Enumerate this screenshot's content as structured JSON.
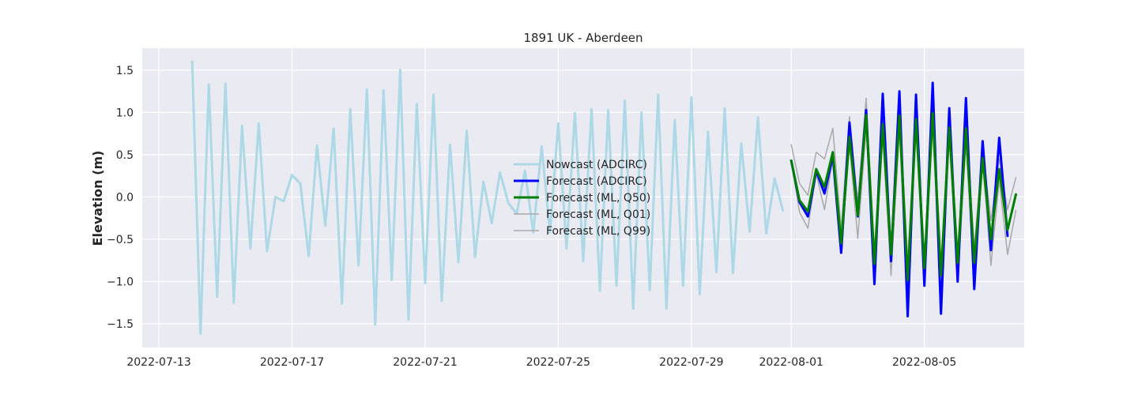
{
  "chart_data": {
    "type": "line",
    "title": "1891 UK - Aberdeen",
    "xlabel": "",
    "ylabel": "Elevation (m)",
    "xlim": [
      "2022-07-12 12:00",
      "2022-08-08 00:00"
    ],
    "ylim": [
      -1.78,
      1.76
    ],
    "x_ticks": [
      "2022-07-13",
      "2022-07-17",
      "2022-07-21",
      "2022-07-25",
      "2022-07-29",
      "2022-08-01",
      "2022-08-05"
    ],
    "y_ticks": [
      -1.5,
      -1.0,
      -0.5,
      0.0,
      0.5,
      1.0,
      1.5
    ],
    "y_tick_labels": [
      "−1.5",
      "−1.0",
      "−0.5",
      "0.0",
      "0.5",
      "1.0",
      "1.5"
    ],
    "grid": true,
    "legend_position": "center",
    "series": [
      {
        "name": "Nowcast (ADCIRC)",
        "color": "#add8e6",
        "width": 3,
        "x": [
          "2022-07-14 00:00",
          "2022-07-14 06:00",
          "2022-07-14 12:00",
          "2022-07-14 18:00",
          "2022-07-15 00:00",
          "2022-07-15 06:00",
          "2022-07-15 12:00",
          "2022-07-15 18:00",
          "2022-07-16 00:00",
          "2022-07-16 06:00",
          "2022-07-16 12:00",
          "2022-07-16 18:00",
          "2022-07-17 00:00",
          "2022-07-17 06:00",
          "2022-07-17 12:00",
          "2022-07-17 18:00",
          "2022-07-18 00:00",
          "2022-07-18 06:00",
          "2022-07-18 12:00",
          "2022-07-18 18:00",
          "2022-07-19 00:00",
          "2022-07-19 06:00",
          "2022-07-19 12:00",
          "2022-07-19 18:00",
          "2022-07-20 00:00",
          "2022-07-20 06:00",
          "2022-07-20 12:00",
          "2022-07-20 18:00",
          "2022-07-21 00:00",
          "2022-07-21 06:00",
          "2022-07-21 12:00",
          "2022-07-21 18:00",
          "2022-07-22 00:00",
          "2022-07-22 06:00",
          "2022-07-22 12:00",
          "2022-07-22 18:00",
          "2022-07-23 00:00",
          "2022-07-23 06:00",
          "2022-07-23 12:00",
          "2022-07-23 18:00",
          "2022-07-24 00:00",
          "2022-07-24 06:00",
          "2022-07-24 12:00",
          "2022-07-24 18:00",
          "2022-07-25 00:00",
          "2022-07-25 06:00",
          "2022-07-25 12:00",
          "2022-07-25 18:00",
          "2022-07-26 00:00",
          "2022-07-26 06:00",
          "2022-07-26 12:00",
          "2022-07-26 18:00",
          "2022-07-27 00:00",
          "2022-07-27 06:00",
          "2022-07-27 12:00",
          "2022-07-27 18:00",
          "2022-07-28 00:00",
          "2022-07-28 06:00",
          "2022-07-28 12:00",
          "2022-07-28 18:00",
          "2022-07-29 00:00",
          "2022-07-29 06:00",
          "2022-07-29 12:00",
          "2022-07-29 18:00",
          "2022-07-30 00:00",
          "2022-07-30 06:00",
          "2022-07-30 12:00",
          "2022-07-30 18:00",
          "2022-07-31 00:00",
          "2022-07-31 06:00",
          "2022-07-31 12:00",
          "2022-07-31 18:00"
        ],
        "y": [
          1.6,
          -1.62,
          1.33,
          -1.18,
          1.34,
          -1.25,
          0.84,
          -0.61,
          0.87,
          -0.64,
          0.0,
          -0.05,
          0.26,
          0.16,
          -0.7,
          0.61,
          -0.34,
          0.81,
          -1.26,
          1.04,
          -0.81,
          1.27,
          -1.51,
          1.26,
          -0.98,
          1.5,
          -1.45,
          1.1,
          -1.02,
          1.21,
          -1.23,
          0.62,
          -0.77,
          0.78,
          -0.71,
          0.18,
          -0.31,
          0.29,
          -0.07,
          -0.2,
          0.31,
          -0.42,
          0.6,
          -0.42,
          0.87,
          -0.61,
          0.99,
          -0.76,
          1.04,
          -1.11,
          1.03,
          -1.05,
          1.14,
          -1.32,
          1.0,
          -1.1,
          1.21,
          -1.32,
          0.91,
          -1.05,
          1.18,
          -1.15,
          0.77,
          -0.89,
          1.05,
          -0.9,
          0.63,
          -0.41,
          0.94,
          -0.43,
          0.22,
          -0.16
        ]
      },
      {
        "name": "Forecast (ADCIRC)",
        "color": "#0000ff",
        "width": 3,
        "x": [
          "2022-08-01 00:00",
          "2022-08-01 06:00",
          "2022-08-01 12:00",
          "2022-08-01 18:00",
          "2022-08-02 00:00",
          "2022-08-02 06:00",
          "2022-08-02 12:00",
          "2022-08-02 18:00",
          "2022-08-03 00:00",
          "2022-08-03 06:00",
          "2022-08-03 12:00",
          "2022-08-03 18:00",
          "2022-08-04 00:00",
          "2022-08-04 06:00",
          "2022-08-04 12:00",
          "2022-08-04 18:00",
          "2022-08-05 00:00",
          "2022-08-05 06:00",
          "2022-08-05 12:00",
          "2022-08-05 18:00",
          "2022-08-06 00:00",
          "2022-08-06 06:00",
          "2022-08-06 12:00",
          "2022-08-06 18:00",
          "2022-08-07 00:00",
          "2022-08-07 06:00",
          "2022-08-07 12:00"
        ],
        "y": [
          0.43,
          -0.06,
          -0.23,
          0.31,
          0.04,
          0.49,
          -0.66,
          0.88,
          -0.23,
          1.03,
          -1.03,
          1.22,
          -0.76,
          1.25,
          -1.41,
          1.21,
          -1.05,
          1.35,
          -1.38,
          1.05,
          -1.0,
          1.17,
          -1.09,
          0.66,
          -0.63,
          0.7,
          -0.46
        ]
      },
      {
        "name": "Forecast (ML, Q50)",
        "color": "#008000",
        "width": 3,
        "x": [
          "2022-08-01 00:00",
          "2022-08-01 06:00",
          "2022-08-01 12:00",
          "2022-08-01 18:00",
          "2022-08-02 00:00",
          "2022-08-02 06:00",
          "2022-08-02 12:00",
          "2022-08-02 18:00",
          "2022-08-03 00:00",
          "2022-08-03 06:00",
          "2022-08-03 12:00",
          "2022-08-03 18:00",
          "2022-08-04 00:00",
          "2022-08-04 06:00",
          "2022-08-04 12:00",
          "2022-08-04 18:00",
          "2022-08-05 00:00",
          "2022-08-05 06:00",
          "2022-08-05 12:00",
          "2022-08-05 18:00",
          "2022-08-06 00:00",
          "2022-08-06 06:00",
          "2022-08-06 12:00",
          "2022-08-06 18:00",
          "2022-08-07 00:00",
          "2022-08-07 06:00",
          "2022-08-07 12:00",
          "2022-08-07 18:00"
        ],
        "y": [
          0.43,
          -0.04,
          -0.17,
          0.33,
          0.12,
          0.53,
          -0.55,
          0.71,
          -0.22,
          0.97,
          -0.79,
          0.86,
          -0.68,
          0.96,
          -0.98,
          0.92,
          -0.84,
          0.99,
          -0.93,
          0.82,
          -0.78,
          0.81,
          -0.78,
          0.46,
          -0.5,
          0.33,
          -0.39,
          0.03
        ]
      },
      {
        "name": "Forecast (ML, Q01)",
        "color": "#a9a9a9",
        "width": 1.5,
        "x": [
          "2022-08-01 00:00",
          "2022-08-01 06:00",
          "2022-08-01 12:00",
          "2022-08-01 18:00",
          "2022-08-02 00:00",
          "2022-08-02 06:00",
          "2022-08-02 12:00",
          "2022-08-02 18:00",
          "2022-08-03 00:00",
          "2022-08-03 06:00",
          "2022-08-03 12:00",
          "2022-08-03 18:00",
          "2022-08-04 00:00",
          "2022-08-04 06:00",
          "2022-08-04 12:00",
          "2022-08-04 18:00",
          "2022-08-05 00:00",
          "2022-08-05 06:00",
          "2022-08-05 12:00",
          "2022-08-05 18:00",
          "2022-08-06 00:00",
          "2022-08-06 06:00",
          "2022-08-06 12:00",
          "2022-08-06 18:00",
          "2022-08-07 00:00",
          "2022-08-07 06:00",
          "2022-08-07 12:00",
          "2022-08-07 18:00"
        ],
        "y": [
          0.43,
          -0.18,
          -0.37,
          0.28,
          -0.15,
          0.45,
          -0.65,
          0.62,
          -0.49,
          0.81,
          -0.95,
          0.7,
          -0.93,
          0.78,
          -1.3,
          0.78,
          -1.02,
          0.85,
          -1.28,
          0.68,
          -1.01,
          0.63,
          -1.06,
          0.41,
          -0.81,
          0.2,
          -0.68,
          -0.16
        ]
      },
      {
        "name": "Forecast (ML, Q99)",
        "color": "#a9a9a9",
        "width": 1.5,
        "x": [
          "2022-08-01 00:00",
          "2022-08-01 06:00",
          "2022-08-01 12:00",
          "2022-08-01 18:00",
          "2022-08-02 00:00",
          "2022-08-02 06:00",
          "2022-08-02 12:00",
          "2022-08-02 18:00",
          "2022-08-03 00:00",
          "2022-08-03 06:00",
          "2022-08-03 12:00",
          "2022-08-03 18:00",
          "2022-08-04 00:00",
          "2022-08-04 06:00",
          "2022-08-04 12:00",
          "2022-08-04 18:00",
          "2022-08-05 00:00",
          "2022-08-05 06:00",
          "2022-08-05 12:00",
          "2022-08-05 18:00",
          "2022-08-06 00:00",
          "2022-08-06 06:00",
          "2022-08-06 12:00",
          "2022-08-06 18:00",
          "2022-08-07 00:00",
          "2022-08-07 06:00",
          "2022-08-07 12:00",
          "2022-08-07 18:00"
        ],
        "y": [
          0.62,
          0.16,
          0.02,
          0.53,
          0.45,
          0.81,
          -0.38,
          0.95,
          -0.05,
          1.17,
          -0.63,
          1.03,
          -0.54,
          1.09,
          -0.75,
          1.03,
          -0.68,
          1.12,
          -0.8,
          0.97,
          -0.64,
          0.96,
          -0.6,
          0.59,
          -0.28,
          0.45,
          -0.15,
          0.23
        ]
      }
    ]
  }
}
